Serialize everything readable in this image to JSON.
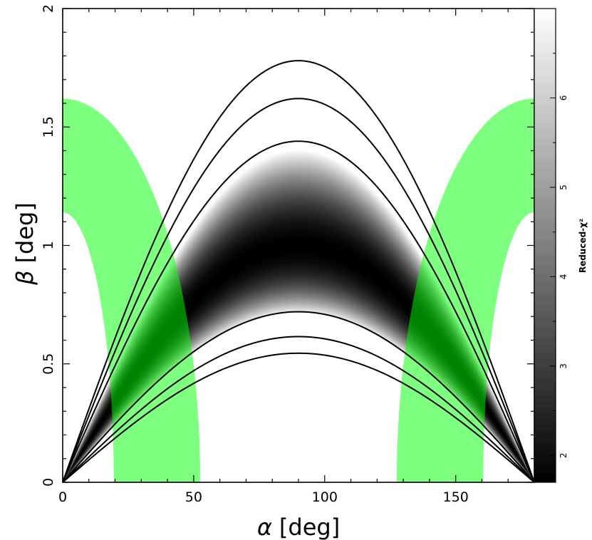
{
  "chart_data": {
    "type": "heatmap",
    "title": "",
    "xlabel_symbol": "α",
    "xlabel_unit": "[deg]",
    "ylabel_symbol": "β",
    "ylabel_unit": "[deg]",
    "xlim": [
      0,
      180
    ],
    "ylim": [
      0,
      2
    ],
    "x_ticks": [
      0,
      50,
      100,
      150
    ],
    "y_ticks": [
      0,
      0.5,
      1,
      1.5,
      2
    ],
    "y_tick_labels": [
      "0",
      "0.5",
      "1",
      "1.5",
      "2"
    ],
    "colorbar": {
      "label": "Reduced-χ²",
      "range": [
        1.7,
        7
      ],
      "ticks": [
        2,
        3,
        4,
        5,
        6
      ],
      "colormap": "gray (black=low, white=high)"
    },
    "heatmap_region": {
      "description": "Reduced-chi2 map bounded by beta = A*sin(alpha) envelopes",
      "upper_amplitude": 1.78,
      "lower_amplitude": 0.545,
      "minimum_amplitude": 1.0
    },
    "contours": {
      "color": "#000000",
      "amplitudes": [
        1.78,
        1.62,
        1.44,
        0.72,
        0.615,
        0.545
      ]
    },
    "green_bands": {
      "color": "#00ff00",
      "opacity": 0.5,
      "bands": [
        {
          "x_at_beta0": [
            19.5,
            52.5
          ],
          "x_at_top": [
            0,
            0
          ],
          "beta_top_outer": 1.62,
          "beta_top_inner": 1.14
        },
        {
          "x_at_beta0": [
            127.5,
            160.5
          ],
          "x_at_top": [
            180,
            180
          ],
          "beta_top_outer": 1.62,
          "beta_top_inner": 1.14
        }
      ]
    }
  }
}
